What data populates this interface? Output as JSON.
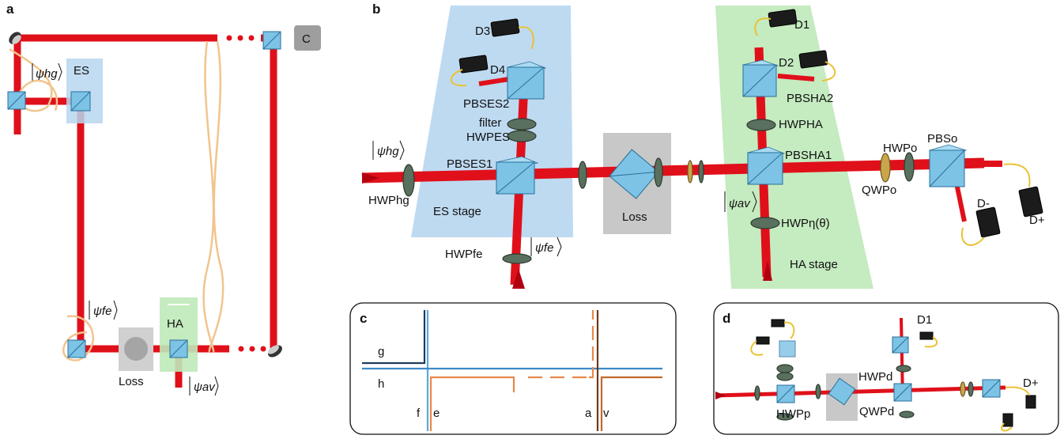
{
  "panels": {
    "a": {
      "letter": "a",
      "ket_hg": "ψhg",
      "ket_fe": "ψfe",
      "ket_av": "ψav",
      "es_box": "ES",
      "ha_box": "HA",
      "c_box": "C",
      "loss": "Loss"
    },
    "b": {
      "letter": "b",
      "D1": "D1",
      "D2": "D2",
      "D3": "D3",
      "D4": "D4",
      "Dplus": "D+",
      "Dminus": "D-",
      "pbs_es2": "PBSES2",
      "pbs_es1": "PBSES1",
      "pbs_ha2": "PBSHA2",
      "pbs_ha1": "PBSHA1",
      "filter": "filter",
      "hwp_es": "HWPES",
      "hwp_ha": "HWPHA",
      "hwp_o": "HWPo",
      "pbs_o": "PBSo",
      "qwp_o": "QWPo",
      "hwp_hg": "HWPhg",
      "hwp_fe": "HWPfe",
      "hwp_eta": "HWPη(θ)",
      "ket_hg": "ψhg",
      "ket_fe": "ψfe",
      "ket_av": "ψav",
      "es_stage": "ES stage",
      "ha_stage": "HA stage",
      "loss": "Loss"
    },
    "c": {
      "letter": "c",
      "g": "g",
      "h": "h",
      "f": "f",
      "e": "e",
      "a": "a",
      "v": "v"
    },
    "d": {
      "letter": "d",
      "D1": "D1",
      "Dplus": "D+",
      "hwp_d": "HWPd",
      "qwp_d": "QWPd",
      "hwp_p": "HWPp"
    }
  },
  "colors": {
    "beam": "#e0101a",
    "cube": "#7cc3e6",
    "es_stage_bg": "#b7d6ef",
    "ha_stage_bg": "#bfe9b9",
    "line_dark_blue": "#1f3a5c",
    "line_light_blue": "#5ba8de",
    "line_orange": "#e8884a",
    "line_brown": "#6b3a1a"
  }
}
